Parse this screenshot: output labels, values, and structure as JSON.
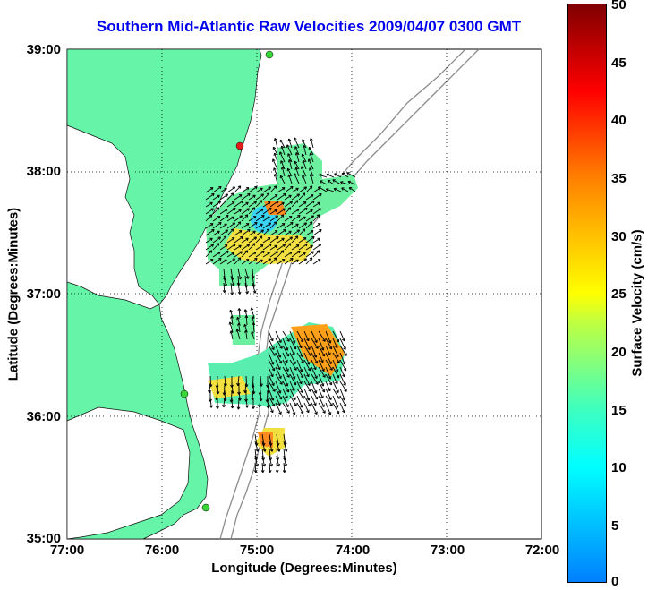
{
  "title": "Southern Mid-Atlantic Raw Velocities 2009/04/07 0300 GMT",
  "xlabel": "Longitude (Degrees:Minutes)",
  "ylabel": "Latitude (Degrees:Minutes)",
  "colorbar_label": "Surface Velocity (cm/s)",
  "xticks": [
    "77:00",
    "76:00",
    "75:00",
    "74:00",
    "73:00",
    "72:00"
  ],
  "yticks": [
    "39:00",
    "38:00",
    "37:00",
    "36:00",
    "35:00"
  ],
  "colorbar_ticks": [
    "0",
    "5",
    "10",
    "15",
    "20",
    "25",
    "30",
    "35",
    "40",
    "45",
    "50"
  ],
  "colors": {
    "land": "#66f5a8",
    "title": "#0000ee",
    "grid": "#000000",
    "bathymetry": "#8c8c8c",
    "station_green": "#39d639",
    "station_red": "#e31b1b"
  },
  "map": {
    "lon_range": [
      -77,
      -72
    ],
    "lat_range": [
      35,
      39
    ],
    "stations": [
      {
        "name": "station-north",
        "status": "green",
        "lon": -74.85,
        "lat": 38.98
      },
      {
        "name": "station-cape-henlopen",
        "status": "red",
        "lon": -75.15,
        "lat": 38.22
      },
      {
        "name": "station-duck",
        "status": "green",
        "lon": -75.75,
        "lat": 36.18
      },
      {
        "name": "station-hatteras",
        "status": "green",
        "lon": -75.5,
        "lat": 35.27
      }
    ]
  }
}
